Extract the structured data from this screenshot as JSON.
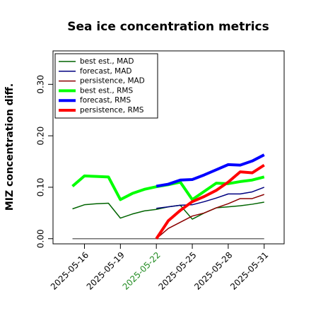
{
  "chart_data": {
    "type": "line",
    "title": "Sea ice concentration metrics",
    "ylabel": "MIZ concentration diff.",
    "x": [
      "2025-05-15",
      "2025-05-16",
      "2025-05-17",
      "2025-05-18",
      "2025-05-19",
      "2025-05-20",
      "2025-05-21",
      "2025-05-22",
      "2025-05-23",
      "2025-05-24",
      "2025-05-25",
      "2025-05-26",
      "2025-05-27",
      "2025-05-28",
      "2025-05-29",
      "2025-05-30",
      "2025-05-31"
    ],
    "xlim": [
      "2025-05-13T09:00",
      "2025-06-01T16:00"
    ],
    "xticks": [
      "2025-05-16",
      "2025-05-19",
      "2025-05-22",
      "2025-05-25",
      "2025-05-28",
      "2025-05-31"
    ],
    "highlight_tick": "2025-05-22",
    "highlight_color": "#228b22",
    "ylim": [
      -0.01,
      0.365
    ],
    "yticks": [
      {
        "value": 0,
        "label": "0.00"
      },
      {
        "value": 0.1,
        "label": "0.10"
      },
      {
        "value": 0.2,
        "label": "0.20"
      },
      {
        "value": 0.3,
        "label": "0.30"
      }
    ],
    "legend": "upper left",
    "series": [
      {
        "name": "best est., MAD",
        "color": "#006400",
        "width": 1.5,
        "values": [
          0.058,
          0.066,
          0.068,
          0.069,
          0.04,
          0.048,
          0.054,
          0.057,
          0.062,
          0.065,
          0.038,
          0.05,
          0.06,
          0.062,
          0.064,
          0.067,
          0.071
        ]
      },
      {
        "name": "forecast,  MAD",
        "color": "#000080",
        "width": 1.5,
        "values": [
          null,
          null,
          null,
          null,
          null,
          null,
          null,
          0.059,
          0.062,
          0.065,
          0.066,
          0.072,
          0.079,
          0.087,
          0.087,
          0.091,
          0.1
        ]
      },
      {
        "name": "persistence, MAD",
        "color": "#8b0000",
        "width": 1.5,
        "values": [
          null,
          null,
          null,
          null,
          null,
          null,
          null,
          0.0,
          0.02,
          0.032,
          0.044,
          0.05,
          0.06,
          0.068,
          0.078,
          0.078,
          0.086
        ]
      },
      {
        "name": "best est., RMS",
        "color": "#00ff00",
        "width": 4,
        "values": [
          0.102,
          0.122,
          0.121,
          0.12,
          0.076,
          0.088,
          0.096,
          0.101,
          0.105,
          0.11,
          0.076,
          0.092,
          0.108,
          0.107,
          0.111,
          0.114,
          0.12
        ]
      },
      {
        "name": "forecast,  RMS",
        "color": "#0000ff",
        "width": 4,
        "values": [
          null,
          null,
          null,
          null,
          null,
          null,
          null,
          0.102,
          0.106,
          0.114,
          0.115,
          0.124,
          0.134,
          0.144,
          0.143,
          0.151,
          0.163
        ]
      },
      {
        "name": "persistence, RMS",
        "color": "#ff0000",
        "width": 4,
        "values": [
          null,
          null,
          null,
          null,
          null,
          null,
          null,
          0.0,
          0.035,
          0.055,
          0.072,
          0.082,
          0.094,
          0.11,
          0.13,
          0.128,
          0.143
        ]
      }
    ]
  }
}
